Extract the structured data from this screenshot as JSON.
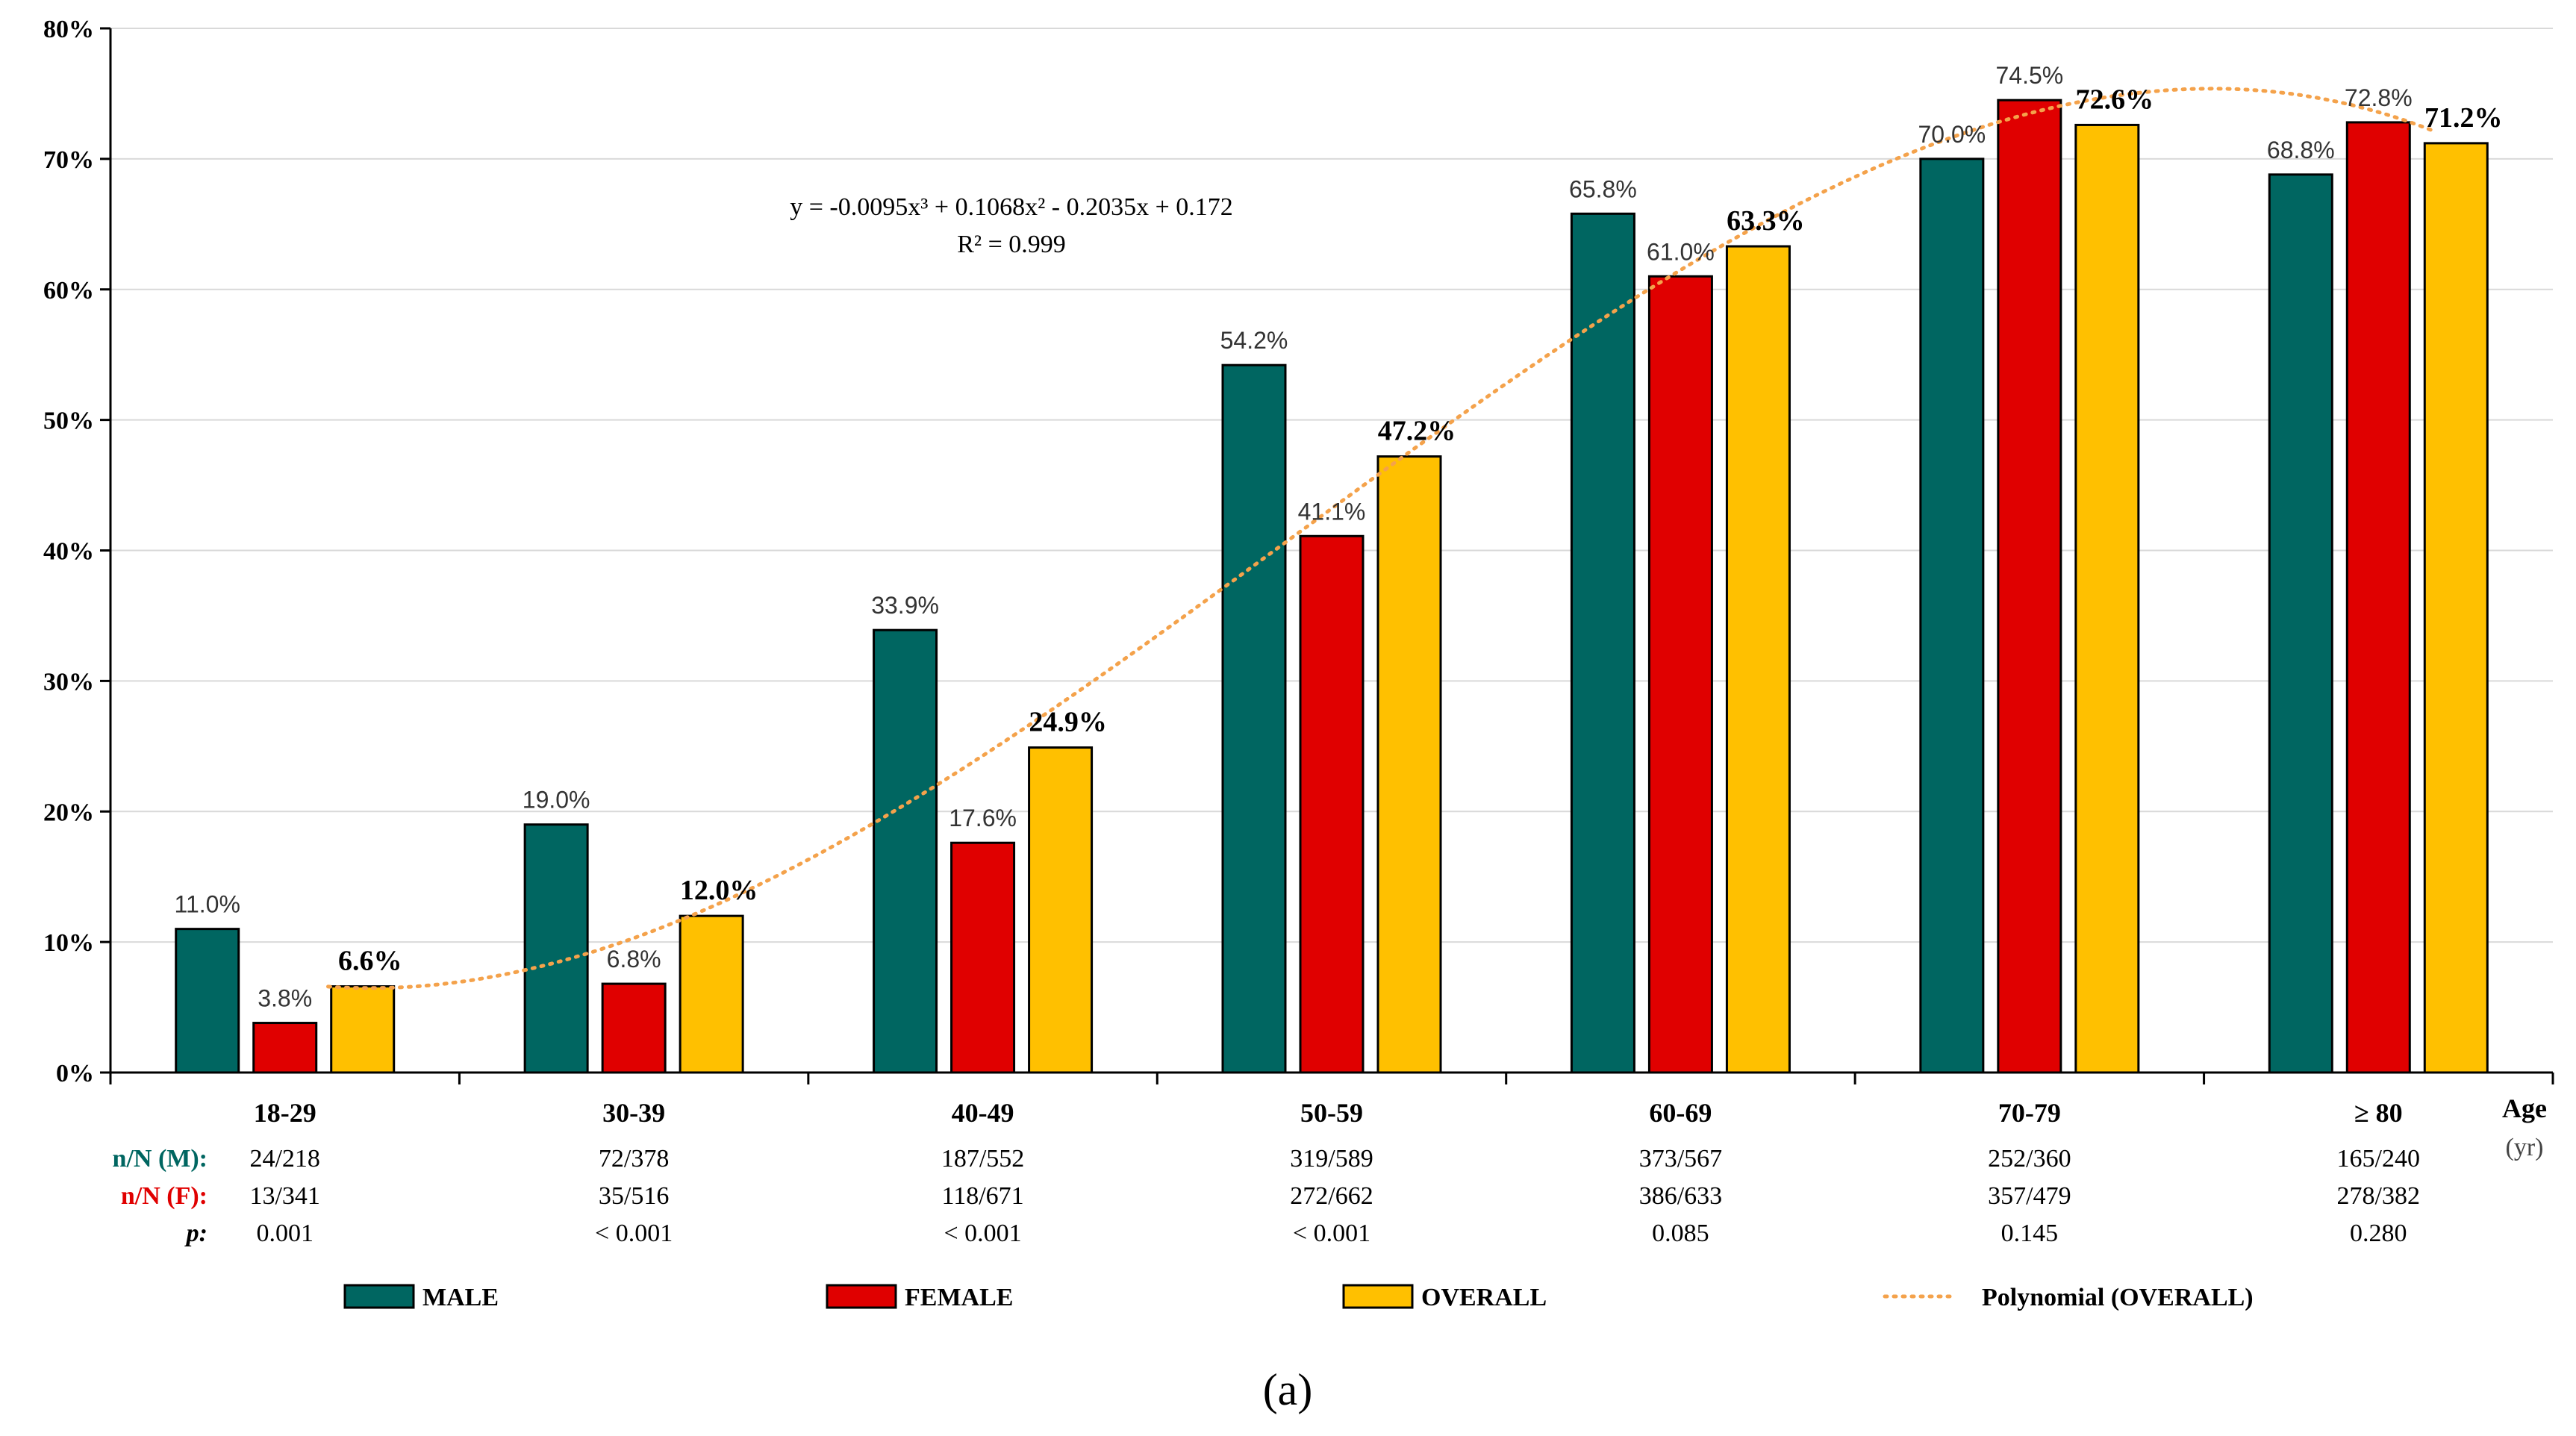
{
  "chart_data": {
    "type": "bar",
    "categories": [
      "18-29",
      "30-39",
      "40-49",
      "50-59",
      "60-69",
      "70-79",
      "≥ 80"
    ],
    "series": [
      {
        "name": "MALE",
        "color": "#006661",
        "values": [
          11.0,
          19.0,
          33.9,
          54.2,
          65.8,
          70.0,
          68.8
        ],
        "labels": [
          "11.0%",
          "19.0%",
          "33.9%",
          "54.2%",
          "65.8%",
          "70.0%",
          "68.8%"
        ]
      },
      {
        "name": "FEMALE",
        "color": "#e00000",
        "values": [
          3.8,
          6.8,
          17.6,
          41.1,
          61.0,
          74.5,
          72.8
        ],
        "labels": [
          "3.8%",
          "6.8%",
          "17.6%",
          "41.1%",
          "61.0%",
          "74.5%",
          "72.8%"
        ]
      },
      {
        "name": "OVERALL",
        "color": "#ffc000",
        "values": [
          6.6,
          12.0,
          24.9,
          47.2,
          63.3,
          72.6,
          71.2
        ],
        "labels": [
          "6.6%",
          "12.0%",
          "24.9%",
          "47.2%",
          "63.3%",
          "72.6%",
          "71.2%"
        ]
      }
    ],
    "trendline": {
      "name": "Polynomial (OVERALL)",
      "color": "#f4a24b",
      "coefficients": [
        -0.0095,
        0.1068,
        -0.2035,
        0.172
      ],
      "equation": "y = -0.0095x³ + 0.1068x² - 0.2035x + 0.172",
      "r_squared": "R² = 0.999"
    },
    "ylim": [
      0,
      80
    ],
    "yticks": [
      0,
      10,
      20,
      30,
      40,
      50,
      60,
      70,
      80
    ],
    "ytick_labels": [
      "0%",
      "10%",
      "20%",
      "30%",
      "40%",
      "50%",
      "60%",
      "70%",
      "80%"
    ],
    "xlabel": "Age",
    "xlabel_unit": "(yr)",
    "grid": true,
    "legend_position": "bottom",
    "table": {
      "row_labels": [
        "n/N (M):",
        "n/N (F):",
        "p:"
      ],
      "row_colors": [
        "#006661",
        "#e00000",
        "#000000"
      ],
      "rows": [
        [
          "24/218",
          "72/378",
          "187/552",
          "319/589",
          "373/567",
          "252/360",
          "165/240"
        ],
        [
          "13/341",
          "35/516",
          "118/671",
          "272/662",
          "386/633",
          "357/479",
          "278/382"
        ],
        [
          "0.001",
          "< 0.001",
          "< 0.001",
          "< 0.001",
          "0.085",
          "0.145",
          "0.280"
        ]
      ]
    },
    "panel_label": "(a)"
  }
}
